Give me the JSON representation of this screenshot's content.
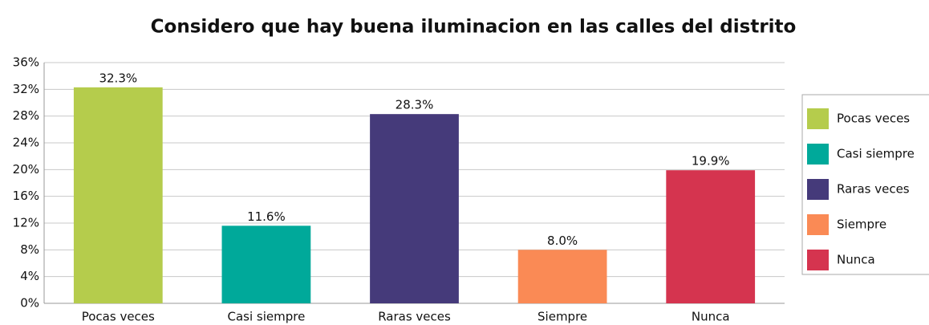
{
  "chart_data": {
    "type": "bar",
    "title": "Considero que hay buena iluminacion en las calles del distrito",
    "categories": [
      "Pocas veces",
      "Casi siempre",
      "Raras veces",
      "Siempre",
      "Nunca"
    ],
    "values": [
      32.3,
      11.6,
      28.3,
      8.0,
      19.9
    ],
    "value_labels": [
      "32.3%",
      "11.6%",
      "28.3%",
      "8.0%",
      "19.9%"
    ],
    "colors": [
      "#b5cc4c",
      "#00a99a",
      "#453a7a",
      "#fa8a55",
      "#d5344f"
    ],
    "ylim": [
      0,
      36
    ],
    "yticks": [
      {
        "value": 0,
        "label": "0%"
      },
      {
        "value": 4,
        "label": "4%"
      },
      {
        "value": 8,
        "label": "8%"
      },
      {
        "value": 12,
        "label": "12%"
      },
      {
        "value": 16,
        "label": "16%"
      },
      {
        "value": 20,
        "label": "20%"
      },
      {
        "value": 24,
        "label": "24%"
      },
      {
        "value": 28,
        "label": "28%"
      },
      {
        "value": 32,
        "label": "32%"
      },
      {
        "value": 36,
        "label": "36%"
      }
    ],
    "grid": true,
    "legend": "right"
  }
}
